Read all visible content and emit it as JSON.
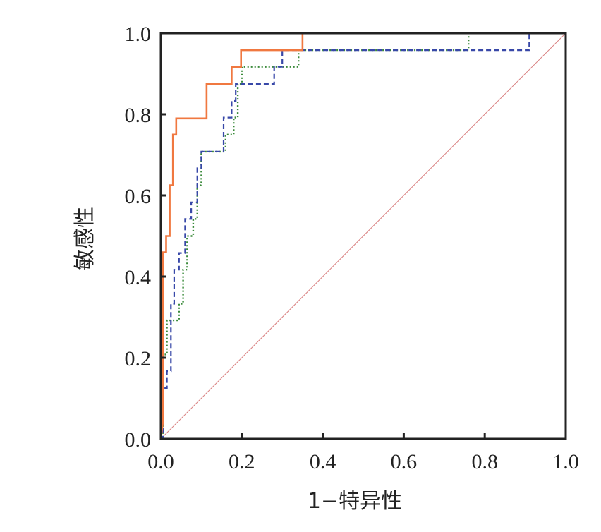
{
  "chart_data": {
    "type": "line",
    "title": "",
    "xlabel": "1−特异性",
    "ylabel": "敏感性",
    "xlim": [
      0,
      1
    ],
    "ylim": [
      0,
      1
    ],
    "xticks": [
      "0.0",
      "0.2",
      "0.4",
      "0.6",
      "0.8",
      "1.0"
    ],
    "yticks": [
      "0.0",
      "0.2",
      "0.4",
      "0.6",
      "0.8",
      "1.0"
    ],
    "grid": false,
    "legend": "none",
    "series": [
      {
        "color": "#f07840",
        "style": "solid",
        "points": [
          [
            0,
            0
          ],
          [
            0.005,
            0.04
          ],
          [
            0.005,
            0.46
          ],
          [
            0.013,
            0.46
          ],
          [
            0.013,
            0.5
          ],
          [
            0.022,
            0.5
          ],
          [
            0.022,
            0.625
          ],
          [
            0.03,
            0.625
          ],
          [
            0.03,
            0.75
          ],
          [
            0.038,
            0.75
          ],
          [
            0.038,
            0.79
          ],
          [
            0.113,
            0.79
          ],
          [
            0.113,
            0.875
          ],
          [
            0.175,
            0.875
          ],
          [
            0.175,
            0.917
          ],
          [
            0.198,
            0.917
          ],
          [
            0.198,
            0.958
          ],
          [
            0.35,
            0.958
          ],
          [
            0.35,
            1.0
          ],
          [
            0.4,
            1.0
          ]
        ]
      },
      {
        "color": "#3848a8",
        "style": "dashed",
        "points": [
          [
            0,
            0
          ],
          [
            0.005,
            0
          ],
          [
            0.005,
            0.125
          ],
          [
            0.015,
            0.125
          ],
          [
            0.015,
            0.167
          ],
          [
            0.025,
            0.167
          ],
          [
            0.025,
            0.333
          ],
          [
            0.033,
            0.333
          ],
          [
            0.033,
            0.417
          ],
          [
            0.045,
            0.417
          ],
          [
            0.045,
            0.458
          ],
          [
            0.06,
            0.458
          ],
          [
            0.06,
            0.542
          ],
          [
            0.075,
            0.542
          ],
          [
            0.075,
            0.583
          ],
          [
            0.09,
            0.583
          ],
          [
            0.09,
            0.667
          ],
          [
            0.1,
            0.667
          ],
          [
            0.1,
            0.708
          ],
          [
            0.155,
            0.708
          ],
          [
            0.155,
            0.792
          ],
          [
            0.175,
            0.792
          ],
          [
            0.175,
            0.833
          ],
          [
            0.185,
            0.833
          ],
          [
            0.185,
            0.875
          ],
          [
            0.28,
            0.875
          ],
          [
            0.28,
            0.917
          ],
          [
            0.3,
            0.917
          ],
          [
            0.3,
            0.958
          ],
          [
            0.91,
            0.958
          ],
          [
            0.91,
            1.0
          ]
        ]
      },
      {
        "color": "#3a8a3a",
        "style": "dotted",
        "points": [
          [
            0,
            0
          ],
          [
            0.005,
            0
          ],
          [
            0.005,
            0.208
          ],
          [
            0.015,
            0.208
          ],
          [
            0.015,
            0.292
          ],
          [
            0.045,
            0.292
          ],
          [
            0.045,
            0.333
          ],
          [
            0.055,
            0.333
          ],
          [
            0.055,
            0.417
          ],
          [
            0.065,
            0.417
          ],
          [
            0.065,
            0.5
          ],
          [
            0.08,
            0.5
          ],
          [
            0.08,
            0.542
          ],
          [
            0.09,
            0.542
          ],
          [
            0.09,
            0.625
          ],
          [
            0.1,
            0.625
          ],
          [
            0.1,
            0.708
          ],
          [
            0.16,
            0.708
          ],
          [
            0.16,
            0.75
          ],
          [
            0.18,
            0.75
          ],
          [
            0.18,
            0.792
          ],
          [
            0.19,
            0.792
          ],
          [
            0.19,
            0.875
          ],
          [
            0.2,
            0.875
          ],
          [
            0.2,
            0.917
          ],
          [
            0.34,
            0.917
          ],
          [
            0.34,
            0.958
          ],
          [
            0.76,
            0.958
          ],
          [
            0.76,
            1.0
          ],
          [
            0.8,
            1.0
          ]
        ]
      },
      {
        "color": "#d98080",
        "style": "reference",
        "points": [
          [
            0,
            0
          ],
          [
            1,
            1
          ]
        ]
      }
    ]
  }
}
